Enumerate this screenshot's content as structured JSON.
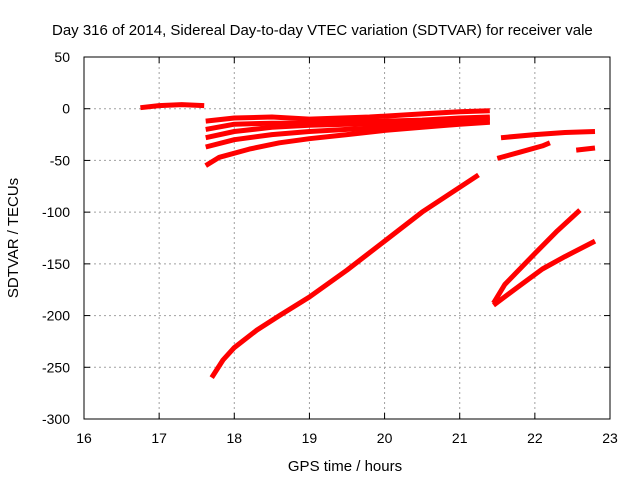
{
  "chart_data": {
    "type": "line",
    "title": "Day 316 of 2014, Sidereal Day-to-day VTEC variation (SDTVAR) for receiver vale",
    "xlabel": "GPS time / hours",
    "ylabel": "SDTVAR / TECUs",
    "xlim": [
      16,
      23
    ],
    "ylim": [
      -300,
      50
    ],
    "xticks": [
      "16",
      "17",
      "18",
      "19",
      "20",
      "21",
      "22",
      "23"
    ],
    "yticks": [
      "50",
      "0",
      "-50",
      "-100",
      "-150",
      "-200",
      "-250",
      "-300"
    ],
    "grid": true,
    "line_color": "#ff0000",
    "series": [
      {
        "x": [
          16.75,
          17.0,
          17.3,
          17.6
        ],
        "y": [
          1,
          3,
          4,
          3
        ]
      },
      {
        "x": [
          17.62,
          18.0,
          18.5,
          19.0,
          19.8,
          20.5,
          21.0,
          21.4
        ],
        "y": [
          -12,
          -9,
          -8,
          -10,
          -8,
          -5,
          -3,
          -2
        ]
      },
      {
        "x": [
          17.62,
          18.0,
          18.5,
          19.0,
          19.5,
          20.0,
          20.5,
          21.0,
          21.4
        ],
        "y": [
          -20,
          -15,
          -14,
          -14,
          -13,
          -12,
          -11,
          -9,
          -8
        ]
      },
      {
        "x": [
          17.62,
          18.0,
          18.5,
          19.0,
          19.5,
          20.0,
          20.5,
          21.0,
          21.4
        ],
        "y": [
          -28,
          -22,
          -18,
          -16,
          -15,
          -14,
          -12,
          -10,
          -9
        ]
      },
      {
        "x": [
          17.62,
          18.0,
          18.5,
          19.0,
          19.5,
          20.0,
          20.5,
          21.0,
          21.4
        ],
        "y": [
          -37,
          -30,
          -25,
          -22,
          -20,
          -18,
          -16,
          -14,
          -12
        ]
      },
      {
        "x": [
          17.62,
          17.8,
          18.2,
          18.6,
          19.0,
          19.5,
          20.0,
          20.5,
          21.0,
          21.4
        ],
        "y": [
          -55,
          -47,
          -39,
          -33,
          -29,
          -25,
          -21,
          -18,
          -15,
          -13
        ]
      },
      {
        "x": [
          17.7,
          17.85,
          18.0,
          18.3,
          18.6,
          19.0,
          19.5,
          20.0,
          20.5,
          21.0,
          21.25
        ],
        "y": [
          -260,
          -243,
          -231,
          -214,
          -200,
          -182,
          -156,
          -128,
          -100,
          -76,
          -64
        ]
      },
      {
        "x": [
          21.45,
          21.6,
          22.0,
          22.3,
          22.6
        ],
        "y": [
          -188,
          -170,
          -140,
          -118,
          -98
        ]
      },
      {
        "x": [
          21.45,
          21.8,
          22.1,
          22.4,
          22.8
        ],
        "y": [
          -190,
          -171,
          -155,
          -143,
          -128
        ]
      },
      {
        "x": [
          21.5,
          21.8,
          22.1,
          22.2
        ],
        "y": [
          -48,
          -42,
          -36,
          -33
        ]
      },
      {
        "x": [
          21.55,
          22.0,
          22.4,
          22.8
        ],
        "y": [
          -28,
          -25,
          -23,
          -22
        ]
      },
      {
        "x": [
          22.55,
          22.8
        ],
        "y": [
          -40,
          -38
        ]
      }
    ]
  }
}
